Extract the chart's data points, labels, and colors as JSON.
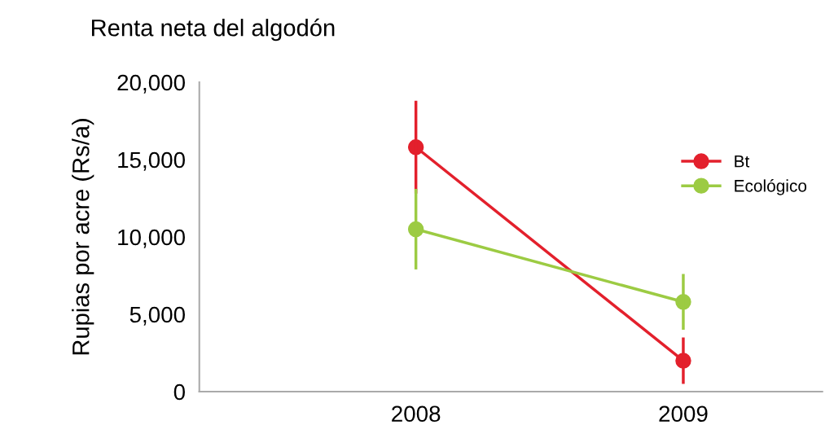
{
  "chart_data": {
    "type": "line",
    "title": "Renta neta del algodón",
    "ylabel": "Rupias por acre (Rs/a)",
    "categories": [
      "2008",
      "2009"
    ],
    "series": [
      {
        "name": "Bt",
        "color": "#e3202c",
        "values": [
          15800,
          2000
        ],
        "errors": [
          3000,
          1500
        ]
      },
      {
        "name": "Ecológico",
        "color": "#9ccb43",
        "values": [
          10500,
          5800
        ],
        "errors": [
          2600,
          1800
        ]
      }
    ],
    "ylim": [
      0,
      20000
    ],
    "yticks": [
      {
        "value": 0,
        "label": "0"
      },
      {
        "value": 5000,
        "label": "5,000"
      },
      {
        "value": 10000,
        "label": "10,000"
      },
      {
        "value": 15000,
        "label": "15,000"
      },
      {
        "value": 20000,
        "label": "20,000"
      }
    ],
    "grid": false,
    "legend": "right",
    "marker": "circle",
    "line_style": "solid"
  }
}
